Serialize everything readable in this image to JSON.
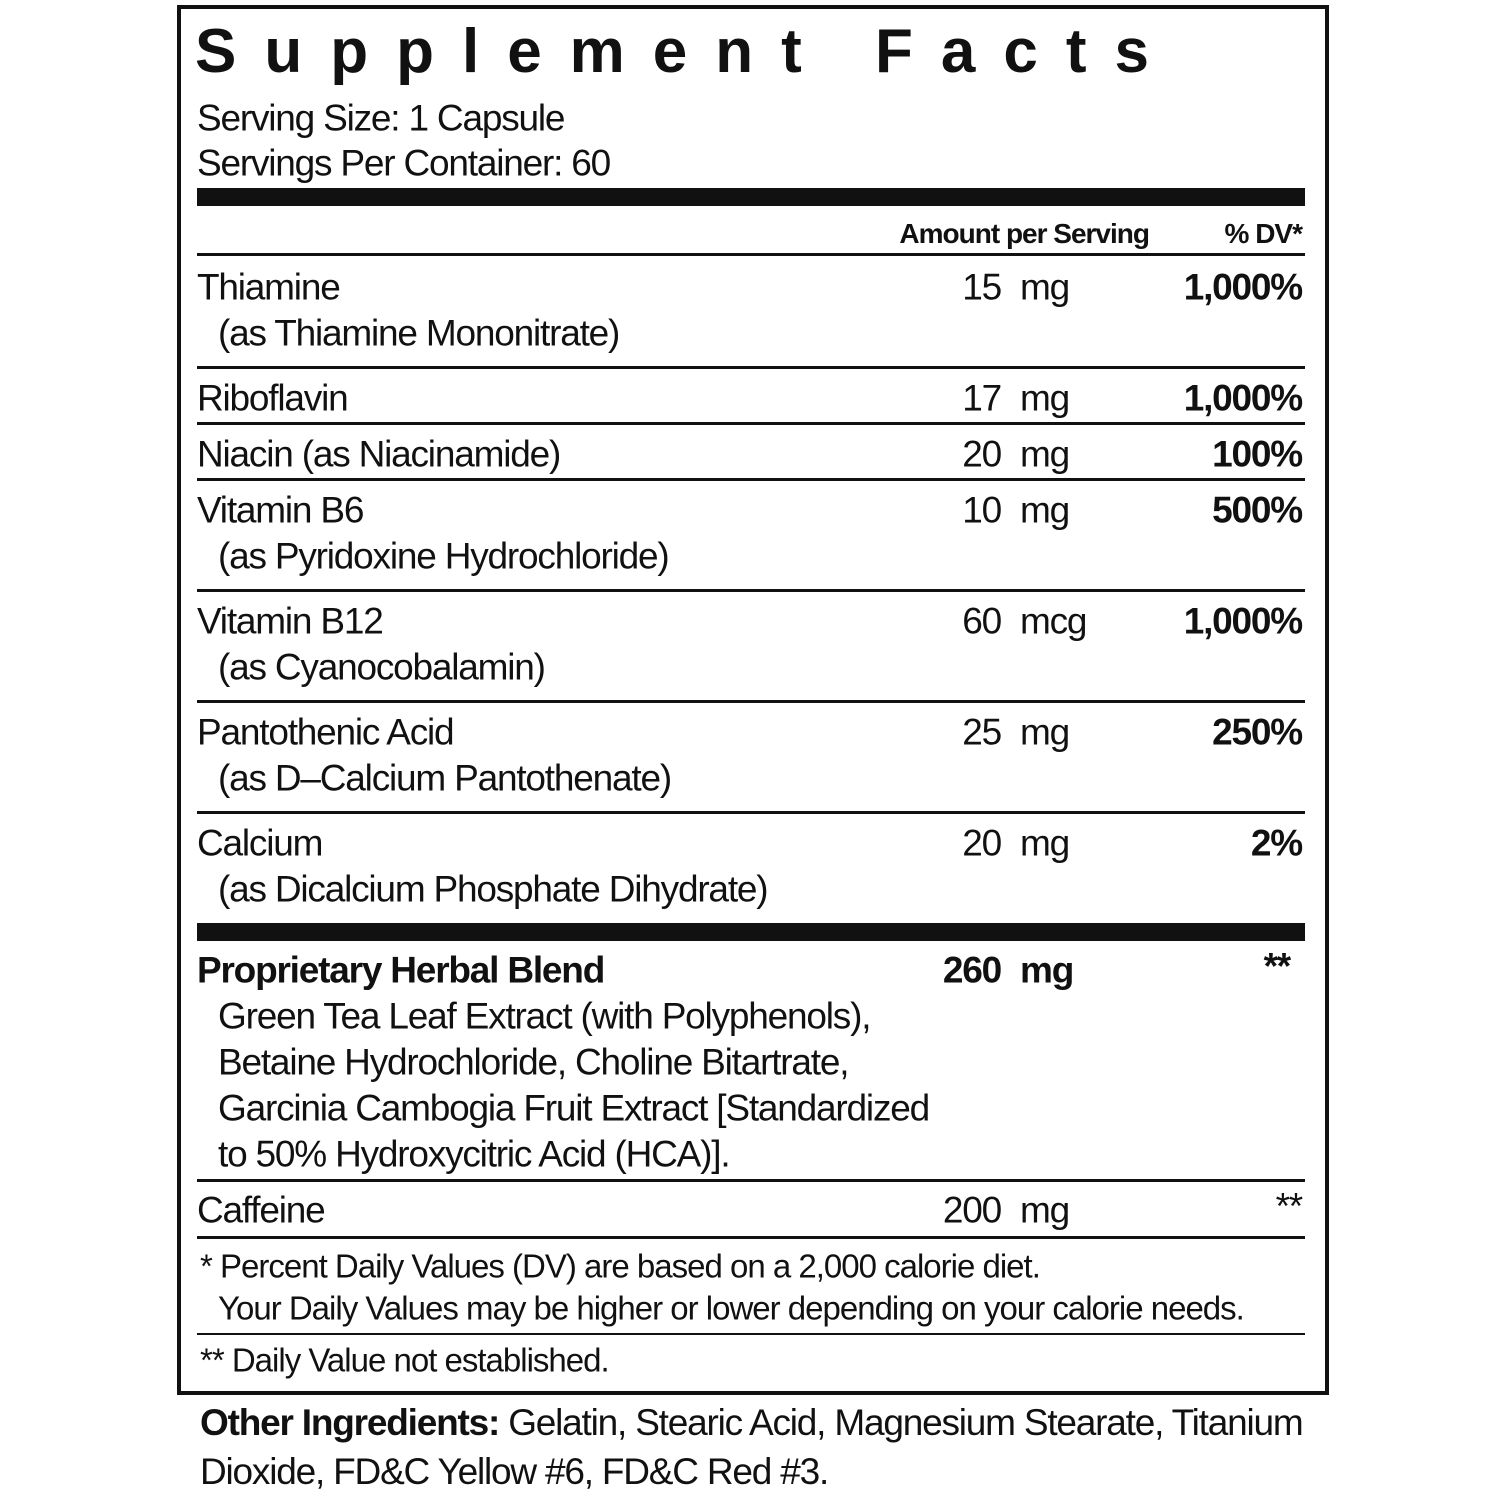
{
  "title": "Supplement Facts",
  "serving_size": "Serving Size: 1 Capsule",
  "servings_per_container": "Servings Per Container: 60",
  "header": {
    "amount": "Amount per Serving",
    "dv": "% DV*"
  },
  "rows": [
    {
      "name": "Thiamine",
      "sub": "(as Thiamine Mononitrate)",
      "amount": "15",
      "unit": "mg",
      "dv": "1,000%"
    },
    {
      "name": "Riboflavin",
      "amount": "17",
      "unit": "mg",
      "dv": "1,000%"
    },
    {
      "name": "Niacin (as Niacinamide)",
      "amount": "20",
      "unit": "mg",
      "dv": "100%"
    },
    {
      "name": "Vitamin B6",
      "sub": "(as Pyridoxine Hydrochloride)",
      "amount": "10",
      "unit": "mg",
      "dv": "500%"
    },
    {
      "name": "Vitamin B12",
      "sub": "(as Cyanocobalamin)",
      "amount": "60",
      "unit": "mcg",
      "dv": "1,000%"
    },
    {
      "name": "Pantothenic Acid",
      "sub": "(as D–Calcium Pantothenate)",
      "amount": "25",
      "unit": "mg",
      "dv": "250%"
    },
    {
      "name": "Calcium",
      "sub": "(as Dicalcium Phosphate Dihydrate)",
      "amount": "20",
      "unit": "mg",
      "dv": "2%"
    }
  ],
  "blend": {
    "name": "Proprietary Herbal Blend",
    "amount": "260",
    "unit": "mg",
    "dv": "**",
    "lines": [
      "Green Tea Leaf Extract (with Polyphenols),",
      "Betaine Hydrochloride, Choline Bitartrate,",
      "Garcinia Cambogia Fruit Extract [Standardized",
      "to 50% Hydroxycitric Acid (HCA)]."
    ]
  },
  "caffeine": {
    "name": "Caffeine",
    "amount": "200",
    "unit": "mg",
    "dv": "**"
  },
  "footnotes": [
    "* Percent Daily Values (DV) are based on a 2,000 calorie diet.",
    "Your Daily Values may be higher or lower depending on your calorie needs.",
    "** Daily Value not established."
  ],
  "other_ingredients": {
    "label": "Other Ingredients:",
    "text": "Gelatin, Stearic Acid, Magnesium Stearate, Titanium Dioxide, FD&C Yellow #6, FD&C Red #3."
  }
}
